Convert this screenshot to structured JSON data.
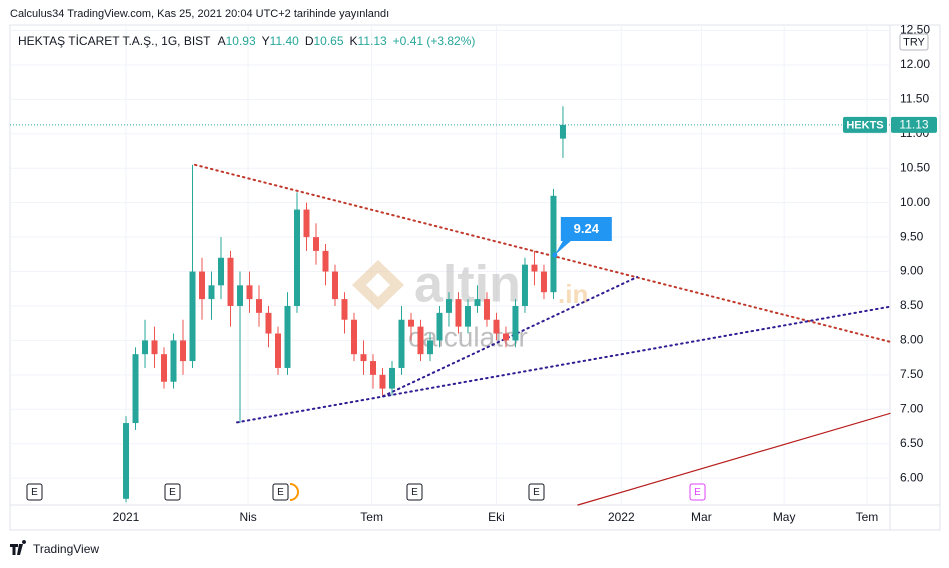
{
  "header": {
    "published": "Calculus34 TradingView.com, Kas 25, 2021 20:04 UTC+2 tarihinde yayınlandı",
    "symbol": "HEKTAŞ TİCARET T.A.Ş., 1G, BIST",
    "ohlc": [
      {
        "label": "A",
        "value": "10.93"
      },
      {
        "label": "Y",
        "value": "11.40"
      },
      {
        "label": "D",
        "value": "10.65"
      },
      {
        "label": "K",
        "value": "11.13"
      }
    ],
    "change": "+0.41 (+3.82%)"
  },
  "watermark": {
    "brand": "altin",
    "domain": ".in",
    "sub": "calculator"
  },
  "footer": {
    "brand": "TradingView"
  },
  "chart_data": {
    "type": "candlestick",
    "currency": "TRY",
    "up_color": "#26a69a",
    "down_color": "#ef5350",
    "x": [
      0,
      7,
      14,
      21,
      28,
      35,
      42,
      49,
      56,
      63,
      70,
      77,
      84,
      91,
      98,
      105,
      112,
      119,
      126,
      133,
      140,
      147,
      154,
      161,
      168,
      175,
      182,
      189,
      196,
      203,
      210,
      217,
      224,
      231,
      238,
      245,
      252,
      259,
      266,
      273,
      280,
      287,
      294,
      301,
      308,
      315,
      322
    ],
    "open": [
      5.7,
      6.8,
      7.8,
      8.0,
      7.8,
      7.4,
      8.0,
      7.7,
      9.0,
      8.6,
      8.8,
      9.2,
      8.5,
      8.8,
      8.6,
      8.4,
      8.1,
      7.6,
      8.5,
      9.9,
      9.5,
      9.3,
      9.0,
      8.6,
      8.3,
      7.8,
      7.7,
      7.5,
      7.3,
      7.6,
      8.3,
      8.2,
      7.8,
      8.0,
      8.4,
      8.6,
      8.2,
      8.5,
      8.6,
      8.3,
      8.1,
      8.0,
      8.5,
      9.1,
      9.0,
      8.7,
      10.93
    ],
    "high": [
      6.9,
      7.9,
      8.3,
      8.2,
      7.9,
      8.1,
      8.3,
      10.55,
      9.2,
      9.0,
      9.5,
      9.3,
      9.0,
      9.0,
      8.8,
      8.5,
      8.2,
      8.7,
      10.15,
      10.0,
      9.7,
      9.4,
      9.1,
      8.7,
      8.4,
      8.0,
      7.8,
      7.6,
      7.7,
      8.5,
      8.4,
      8.3,
      8.1,
      8.5,
      8.7,
      8.7,
      8.6,
      8.8,
      8.7,
      8.4,
      8.2,
      8.6,
      9.2,
      9.3,
      9.1,
      10.2,
      11.4
    ],
    "low": [
      5.65,
      6.7,
      7.6,
      7.6,
      7.3,
      7.3,
      7.5,
      7.6,
      8.3,
      8.3,
      8.6,
      8.2,
      6.8,
      8.4,
      8.2,
      7.9,
      7.5,
      7.5,
      8.4,
      9.3,
      9.1,
      8.8,
      8.5,
      8.1,
      7.7,
      7.5,
      7.3,
      7.2,
      7.2,
      7.5,
      8.0,
      7.7,
      7.7,
      7.9,
      8.2,
      8.1,
      8.1,
      8.4,
      8.2,
      8.0,
      7.9,
      7.9,
      8.4,
      8.8,
      8.6,
      8.6,
      10.65
    ],
    "close": [
      6.8,
      7.8,
      8.0,
      7.8,
      7.4,
      8.0,
      7.7,
      9.0,
      8.6,
      8.8,
      9.2,
      8.5,
      8.8,
      8.6,
      8.4,
      8.1,
      7.6,
      8.5,
      9.9,
      9.5,
      9.3,
      9.0,
      8.6,
      8.3,
      7.8,
      7.7,
      7.5,
      7.3,
      7.6,
      8.3,
      8.2,
      7.8,
      8.0,
      8.4,
      8.6,
      8.2,
      8.5,
      8.6,
      8.3,
      8.1,
      8.0,
      8.5,
      9.1,
      9.0,
      8.7,
      10.1,
      11.13
    ],
    "xlim": [
      -85.5,
      563
    ],
    "ylim": [
      5.61,
      12.58
    ],
    "yticks": [
      {
        "value": 6,
        "label": "6.00"
      },
      {
        "value": 6.5,
        "label": "6.50"
      },
      {
        "value": 7,
        "label": "7.00"
      },
      {
        "value": 7.5,
        "label": "7.50"
      },
      {
        "value": 8,
        "label": "8.00"
      },
      {
        "value": 8.5,
        "label": "8.50"
      },
      {
        "value": 9,
        "label": "9.00"
      },
      {
        "value": 9.5,
        "label": "9.50"
      },
      {
        "value": 10,
        "label": "10.00"
      },
      {
        "value": 10.5,
        "label": "10.50"
      },
      {
        "value": 11,
        "label": "11.00"
      },
      {
        "value": 11.5,
        "label": "11.50"
      },
      {
        "value": 12,
        "label": "12.00"
      },
      {
        "value": 12.5,
        "label": "12.50"
      }
    ],
    "xticks": [
      {
        "value": 0,
        "label": "2021"
      },
      {
        "value": 90,
        "label": "Nis"
      },
      {
        "value": 181,
        "label": "Tem"
      },
      {
        "value": 273,
        "label": "Eki"
      },
      {
        "value": 365,
        "label": "2022"
      },
      {
        "value": 424,
        "label": "Mar"
      },
      {
        "value": 485,
        "label": "May"
      },
      {
        "value": 546,
        "label": "Tem"
      }
    ],
    "grid": true,
    "last": {
      "name": "HEKTS",
      "value": 11.13,
      "color": "#26a69a"
    },
    "callout": {
      "x": 316,
      "y": 9.24,
      "color": "#2196f3"
    },
    "drawings": [
      {
        "color": "#c0392b",
        "style": "dotted",
        "x": [
          50.8,
          563
        ],
        "y": [
          10.55,
          7.98
        ]
      },
      {
        "color": "#311b92",
        "style": "dotted",
        "x": [
          81.8,
          563
        ],
        "y": [
          6.81,
          8.49
        ]
      },
      {
        "color": "#311b92",
        "style": "dotted",
        "x": [
          189.4,
          376.6
        ],
        "y": [
          7.19,
          8.92
        ]
      },
      {
        "color": "#b71c1c",
        "style": "solid",
        "x": [
          333,
          563
        ],
        "y": [
          5.61,
          6.94
        ]
      }
    ]
  }
}
